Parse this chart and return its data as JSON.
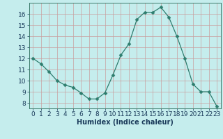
{
  "x": [
    0,
    1,
    2,
    3,
    4,
    5,
    6,
    7,
    8,
    9,
    10,
    11,
    12,
    13,
    14,
    15,
    16,
    17,
    18,
    19,
    20,
    21,
    22,
    23
  ],
  "y": [
    12.0,
    11.5,
    10.8,
    10.0,
    9.6,
    9.4,
    8.9,
    8.35,
    8.35,
    8.9,
    10.5,
    12.3,
    13.3,
    15.5,
    16.15,
    16.15,
    16.6,
    15.7,
    14.0,
    12.0,
    9.7,
    9.0,
    9.0,
    7.7
  ],
  "line_color": "#2e7d6e",
  "marker": "D",
  "marker_size": 2.5,
  "bg_color": "#c5eded",
  "grid_color": "#c8a0a0",
  "xlabel": "Humidex (Indice chaleur)",
  "xlabel_fontsize": 7,
  "tick_fontsize": 6.5,
  "xlim": [
    -0.5,
    23.5
  ],
  "ylim": [
    7.5,
    17.0
  ],
  "yticks": [
    8,
    9,
    10,
    11,
    12,
    13,
    14,
    15,
    16
  ],
  "xticks": [
    0,
    1,
    2,
    3,
    4,
    5,
    6,
    7,
    8,
    9,
    10,
    11,
    12,
    13,
    14,
    15,
    16,
    17,
    18,
    19,
    20,
    21,
    22,
    23
  ]
}
